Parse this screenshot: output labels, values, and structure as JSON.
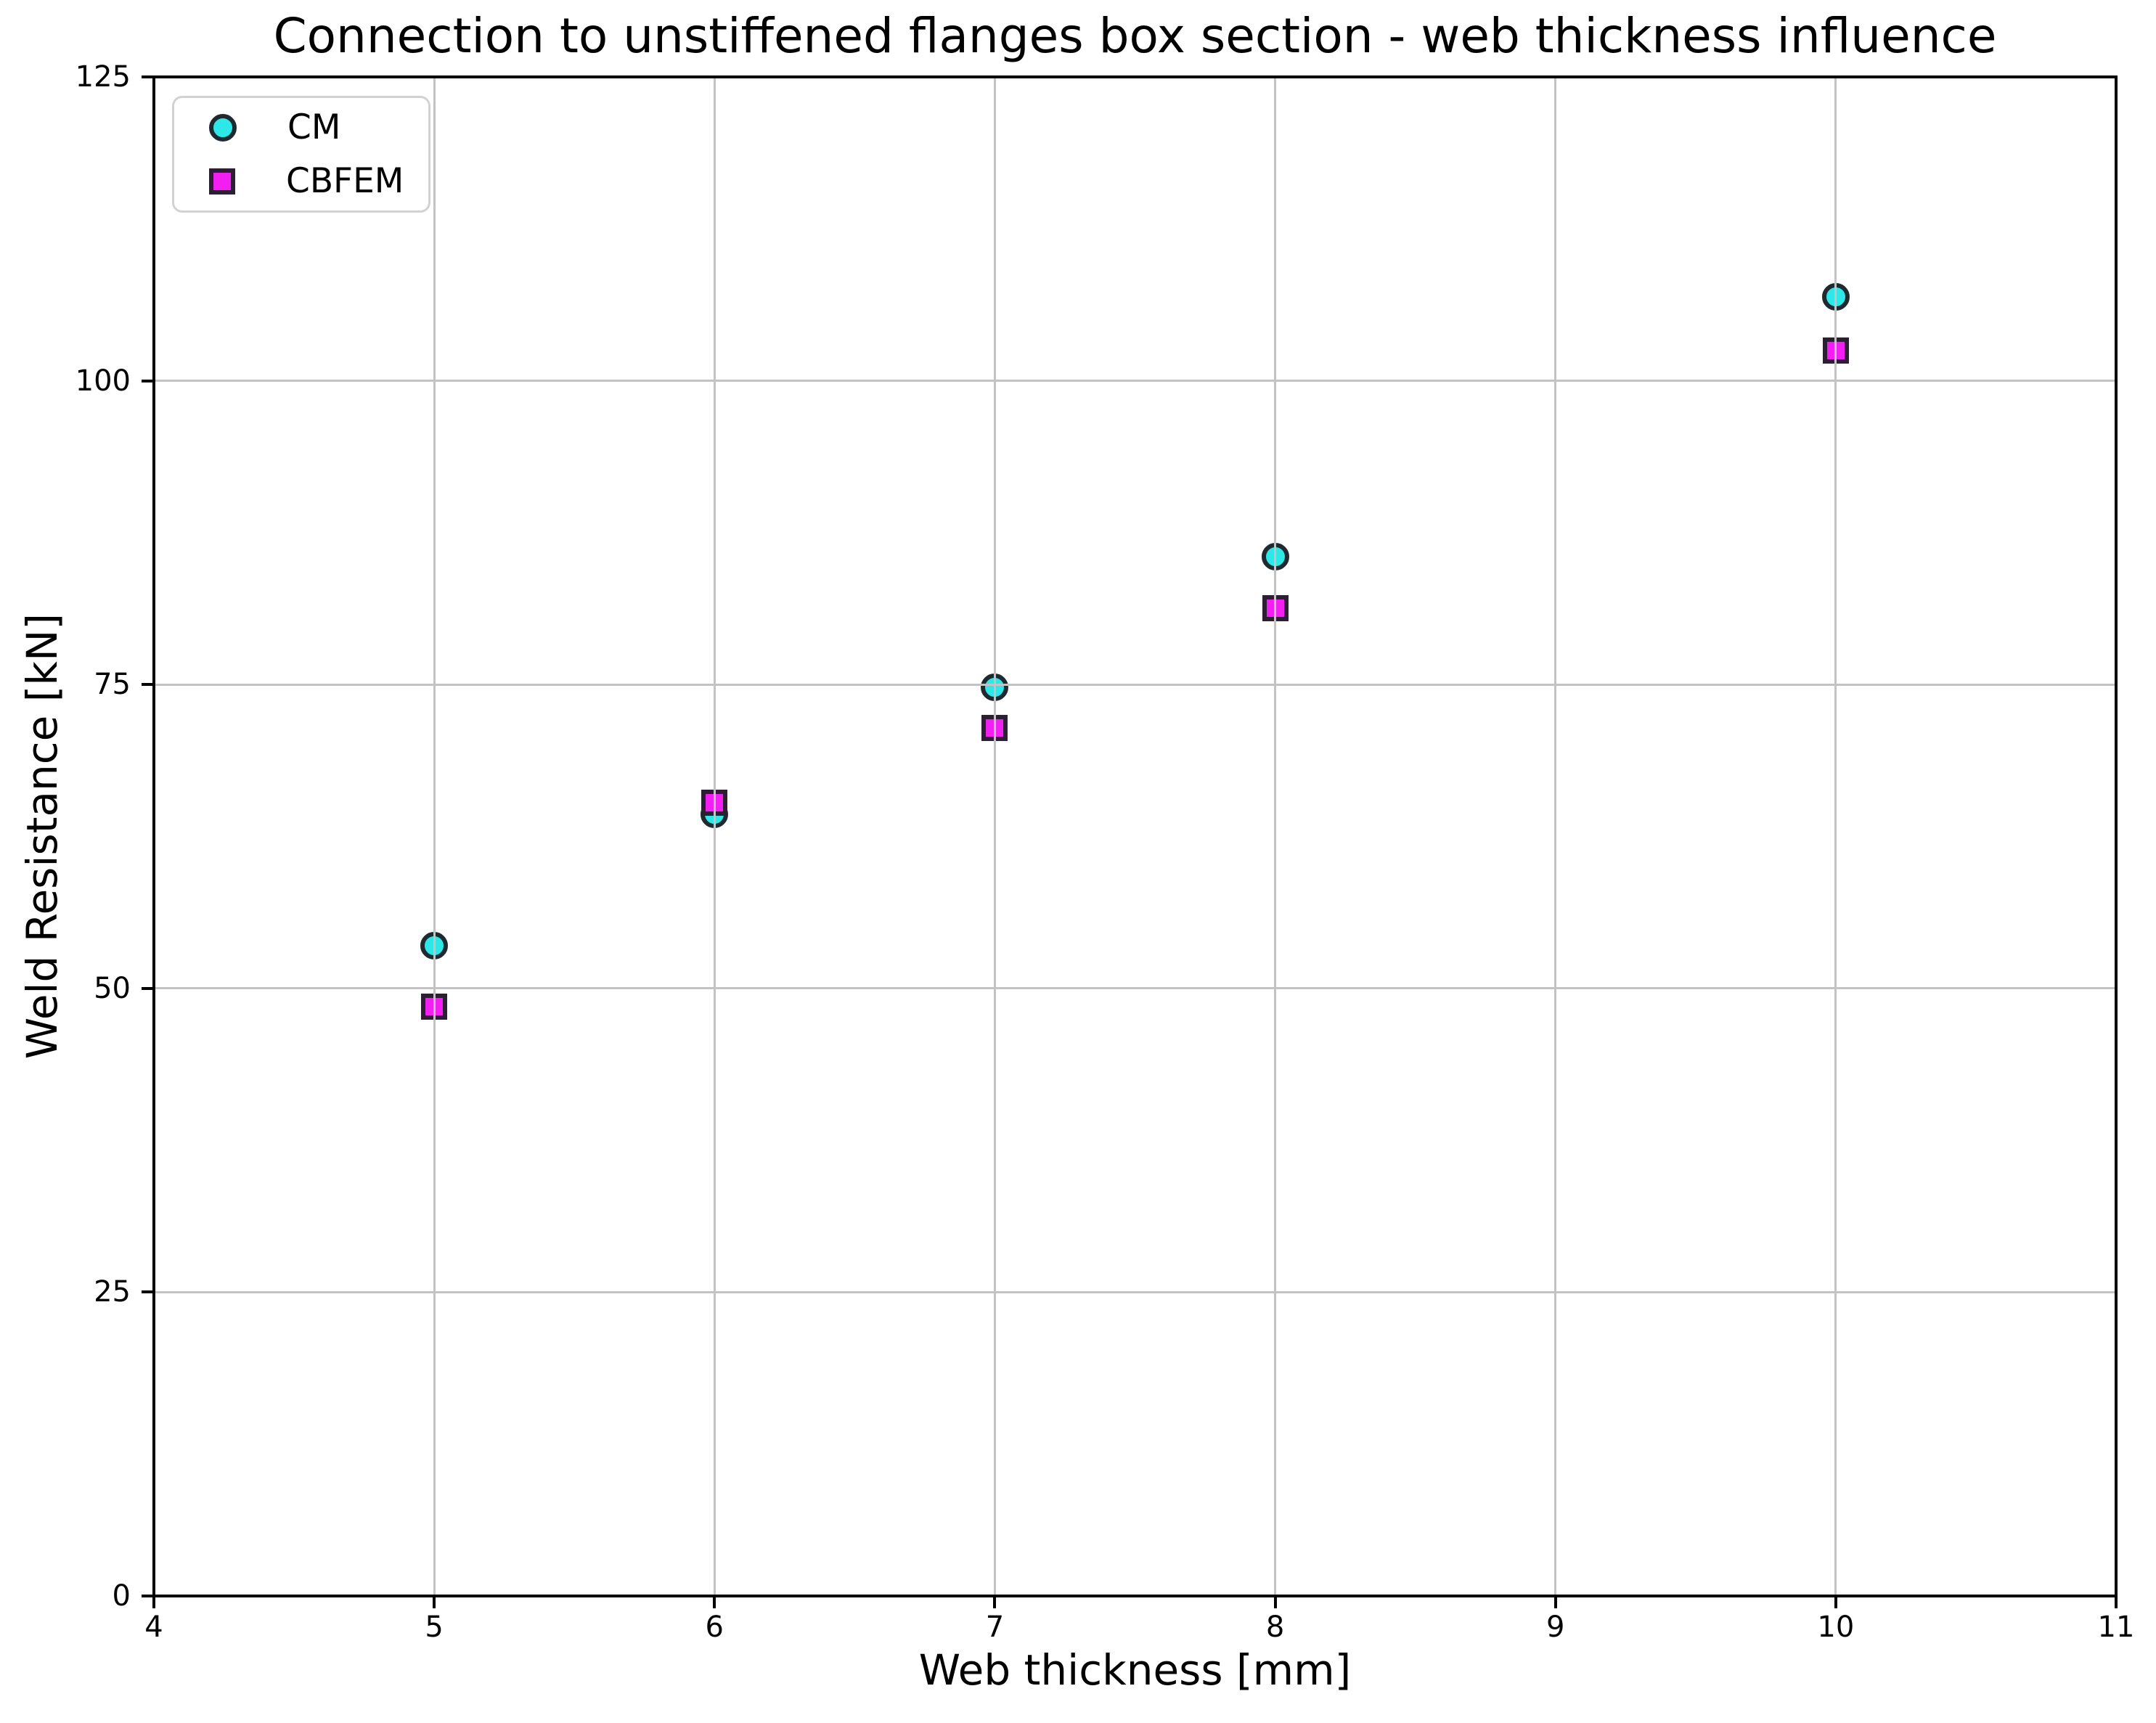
{
  "page": {
    "background": "#ffffff",
    "text_color": "#000000"
  },
  "chart_data": {
    "type": "scatter",
    "title": "Connection to unstiffened flanges box section - web thickness influence",
    "xlabel": "Web thickness [mm]",
    "ylabel": "Weld Resistance [kN]",
    "xlim": [
      4,
      11
    ],
    "ylim": [
      0,
      125
    ],
    "xticks": [
      4,
      5,
      6,
      7,
      8,
      9,
      10,
      11
    ],
    "yticks": [
      0,
      25,
      50,
      75,
      100,
      125
    ],
    "grid": true,
    "grid_color": "#c3c3c3",
    "spine_color": "#000000",
    "legend_position": "upper-left",
    "x": [
      5,
      6,
      7,
      8,
      10
    ],
    "series": [
      {
        "name": "CM",
        "marker": "circle",
        "fill": "#2ee7e7",
        "edge": "#1f2a30",
        "values": [
          53.5,
          64.3,
          74.8,
          85.5,
          106.9
        ]
      },
      {
        "name": "CBFEM",
        "marker": "square",
        "fill": "#f21ef2",
        "edge": "#2c1e33",
        "values": [
          48.5,
          65.3,
          71.4,
          81.3,
          102.5
        ]
      }
    ]
  }
}
